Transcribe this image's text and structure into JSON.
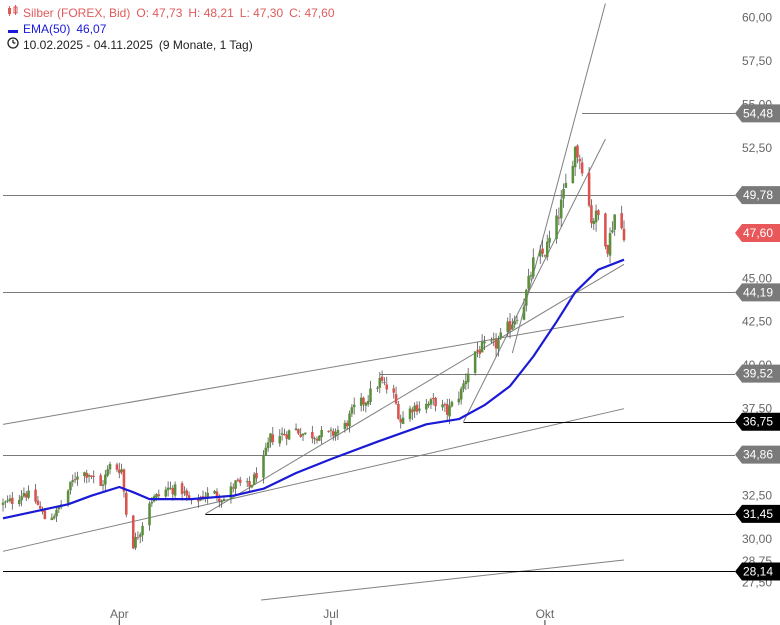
{
  "legend": {
    "instrument": "Silber (FOREX, Bid)",
    "open": "O: 47,73",
    "high": "H: 48,21",
    "low": "L: 47,30",
    "close": "C: 47,60",
    "ema_label": "EMA(50)",
    "ema_value": "46,07",
    "range": "10.02.2025 - 04.11.2025",
    "period": "(9 Monate, 1 Tag)"
  },
  "colors": {
    "candle_up": "#5a8f3c",
    "candle_down": "#d9534f",
    "ema": "#1a1ad6",
    "trendline": "#808080",
    "level_gray": "#7a7a7a",
    "level_black": "#000000",
    "current_price": "#e8585a"
  },
  "chart_data": {
    "type": "candlestick",
    "ylim": [
      26.5,
      61.0
    ],
    "y_ticks": [
      "60,00",
      "57,50",
      "55,00",
      "52,50",
      "50,00",
      "47,50",
      "45,00",
      "42,50",
      "40,00",
      "37,50",
      "35,00",
      "32,50",
      "30,00",
      "28,75",
      "27,50"
    ],
    "y_tick_values": [
      60.0,
      57.5,
      55.0,
      52.5,
      50.0,
      47.5,
      45.0,
      42.5,
      40.0,
      37.5,
      35.0,
      32.5,
      30.0,
      28.75,
      27.5
    ],
    "x_ticks": [
      "Apr",
      "Jul",
      "Okt"
    ],
    "x_tick_dates": [
      "2025-04-01",
      "2025-07-01",
      "2025-10-01"
    ],
    "x_range": [
      "2025-02-10",
      "2025-11-04"
    ],
    "closes": [
      [
        "2025-02-10",
        32.0
      ],
      [
        "2025-02-14",
        32.2
      ],
      [
        "2025-02-19",
        32.7
      ],
      [
        "2025-02-24",
        32.2
      ],
      [
        "2025-02-28",
        31.2
      ],
      [
        "2025-03-05",
        31.5
      ],
      [
        "2025-03-10",
        32.8
      ],
      [
        "2025-03-14",
        33.8
      ],
      [
        "2025-03-19",
        33.8
      ],
      [
        "2025-03-24",
        33.0
      ],
      [
        "2025-03-28",
        34.2
      ],
      [
        "2025-04-02",
        34.0
      ],
      [
        "2025-04-04",
        31.5
      ],
      [
        "2025-04-07",
        29.7
      ],
      [
        "2025-04-10",
        30.5
      ],
      [
        "2025-04-14",
        32.2
      ],
      [
        "2025-04-18",
        32.5
      ],
      [
        "2025-04-22",
        32.9
      ],
      [
        "2025-04-28",
        32.8
      ],
      [
        "2025-05-02",
        32.0
      ],
      [
        "2025-05-07",
        32.5
      ],
      [
        "2025-05-12",
        32.6
      ],
      [
        "2025-05-16",
        32.3
      ],
      [
        "2025-05-21",
        33.2
      ],
      [
        "2025-05-27",
        33.0
      ],
      [
        "2025-06-02",
        34.5
      ],
      [
        "2025-06-05",
        35.8
      ],
      [
        "2025-06-10",
        36.0
      ],
      [
        "2025-06-16",
        36.3
      ],
      [
        "2025-06-20",
        36.0
      ],
      [
        "2025-06-25",
        36.0
      ],
      [
        "2025-07-01",
        36.0
      ],
      [
        "2025-07-07",
        36.5
      ],
      [
        "2025-07-11",
        37.5
      ],
      [
        "2025-07-16",
        38.0
      ],
      [
        "2025-07-22",
        39.1
      ],
      [
        "2025-07-28",
        38.2
      ],
      [
        "2025-07-31",
        36.8
      ],
      [
        "2025-08-05",
        37.6
      ],
      [
        "2025-08-11",
        37.7
      ],
      [
        "2025-08-15",
        37.9
      ],
      [
        "2025-08-20",
        37.3
      ],
      [
        "2025-08-26",
        38.5
      ],
      [
        "2025-09-01",
        40.8
      ],
      [
        "2025-09-05",
        41.0
      ],
      [
        "2025-09-10",
        41.2
      ],
      [
        "2025-09-16",
        42.3
      ],
      [
        "2025-09-22",
        43.6
      ],
      [
        "2025-09-26",
        45.9
      ],
      [
        "2025-10-01",
        46.5
      ],
      [
        "2025-10-06",
        48.2
      ],
      [
        "2025-10-10",
        50.3
      ],
      [
        "2025-10-14",
        52.5
      ],
      [
        "2025-10-17",
        51.5
      ],
      [
        "2025-10-21",
        48.4
      ],
      [
        "2025-10-24",
        48.6
      ],
      [
        "2025-10-28",
        46.8
      ],
      [
        "2025-10-31",
        48.7
      ],
      [
        "2025-11-04",
        47.6
      ]
    ],
    "ema50": [
      [
        "2025-02-10",
        31.2
      ],
      [
        "2025-02-24",
        31.6
      ],
      [
        "2025-03-10",
        32.0
      ],
      [
        "2025-03-20",
        32.5
      ],
      [
        "2025-04-01",
        33.0
      ],
      [
        "2025-04-07",
        32.7
      ],
      [
        "2025-04-14",
        32.3
      ],
      [
        "2025-05-02",
        32.3
      ],
      [
        "2025-05-20",
        32.5
      ],
      [
        "2025-06-02",
        32.9
      ],
      [
        "2025-06-16",
        33.8
      ],
      [
        "2025-07-01",
        34.6
      ],
      [
        "2025-07-21",
        35.6
      ],
      [
        "2025-08-11",
        36.6
      ],
      [
        "2025-08-25",
        36.9
      ],
      [
        "2025-09-05",
        37.7
      ],
      [
        "2025-09-16",
        38.8
      ],
      [
        "2025-09-26",
        40.5
      ],
      [
        "2025-10-06",
        42.5
      ],
      [
        "2025-10-14",
        44.2
      ],
      [
        "2025-10-24",
        45.5
      ],
      [
        "2025-11-04",
        46.07
      ]
    ],
    "horizontal_levels": [
      {
        "label": "54,48",
        "value": 54.48,
        "style": "gray",
        "from": "2025-10-17"
      },
      {
        "label": "49,78",
        "value": 49.78,
        "style": "gray",
        "from": "2025-02-10"
      },
      {
        "label": "44,19",
        "value": 44.19,
        "style": "gray",
        "from": "2025-02-10"
      },
      {
        "label": "39,52",
        "value": 39.52,
        "style": "gray",
        "from": "2025-07-22"
      },
      {
        "label": "36,75",
        "value": 36.75,
        "style": "black",
        "from": "2025-08-27"
      },
      {
        "label": "34,86",
        "value": 34.86,
        "style": "gray",
        "from": "2025-02-10"
      },
      {
        "label": "31,45",
        "value": 31.45,
        "style": "black",
        "from": "2025-05-08"
      },
      {
        "label": "28,14",
        "value": 28.14,
        "style": "black",
        "from": "2025-02-10"
      }
    ],
    "current_price": {
      "label": "47,60",
      "value": 47.6
    },
    "trendlines": [
      {
        "from": [
          "2025-02-10",
          36.6
        ],
        "to": [
          "2025-11-04",
          42.8
        ]
      },
      {
        "from": [
          "2025-02-10",
          29.3
        ],
        "to": [
          "2025-11-04",
          37.5
        ]
      },
      {
        "from": [
          "2025-05-08",
          31.45
        ],
        "to": [
          "2025-11-04",
          45.8
        ]
      },
      {
        "from": [
          "2025-08-27",
          36.75
        ],
        "to": [
          "2025-10-27",
          53.0
        ]
      },
      {
        "from": [
          "2025-09-17",
          40.7
        ],
        "to": [
          "2025-10-27",
          60.8
        ]
      },
      {
        "from": [
          "2025-06-01",
          26.5
        ],
        "to": [
          "2025-11-04",
          28.8
        ]
      }
    ]
  }
}
